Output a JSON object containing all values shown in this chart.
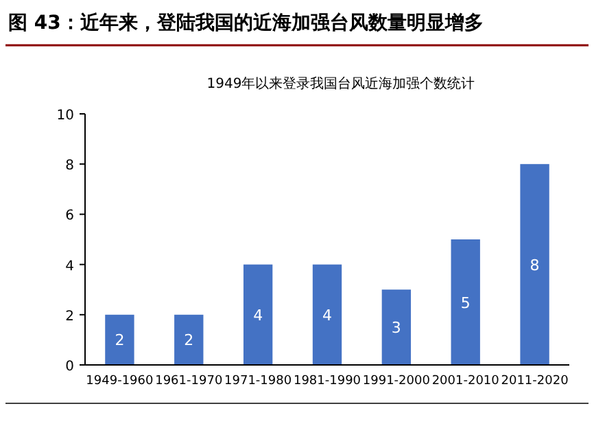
{
  "chart_data": {
    "type": "bar",
    "title": "图 43：近年来，登陆我国的近海加强台风数量明显增多",
    "subtitle": "1949年以来登录我国台风近海加强个数统计",
    "categories": [
      "1949-1960",
      "1961-1970",
      "1971-1980",
      "1981-1990",
      "1991-2000",
      "2001-2010",
      "2011-2020"
    ],
    "values": [
      2,
      2,
      4,
      4,
      3,
      5,
      8
    ],
    "color": "#4472c4",
    "ylim": [
      0,
      10
    ],
    "yticks": [
      0,
      2,
      4,
      6,
      8,
      10
    ],
    "grid": false,
    "data_labels": true
  }
}
